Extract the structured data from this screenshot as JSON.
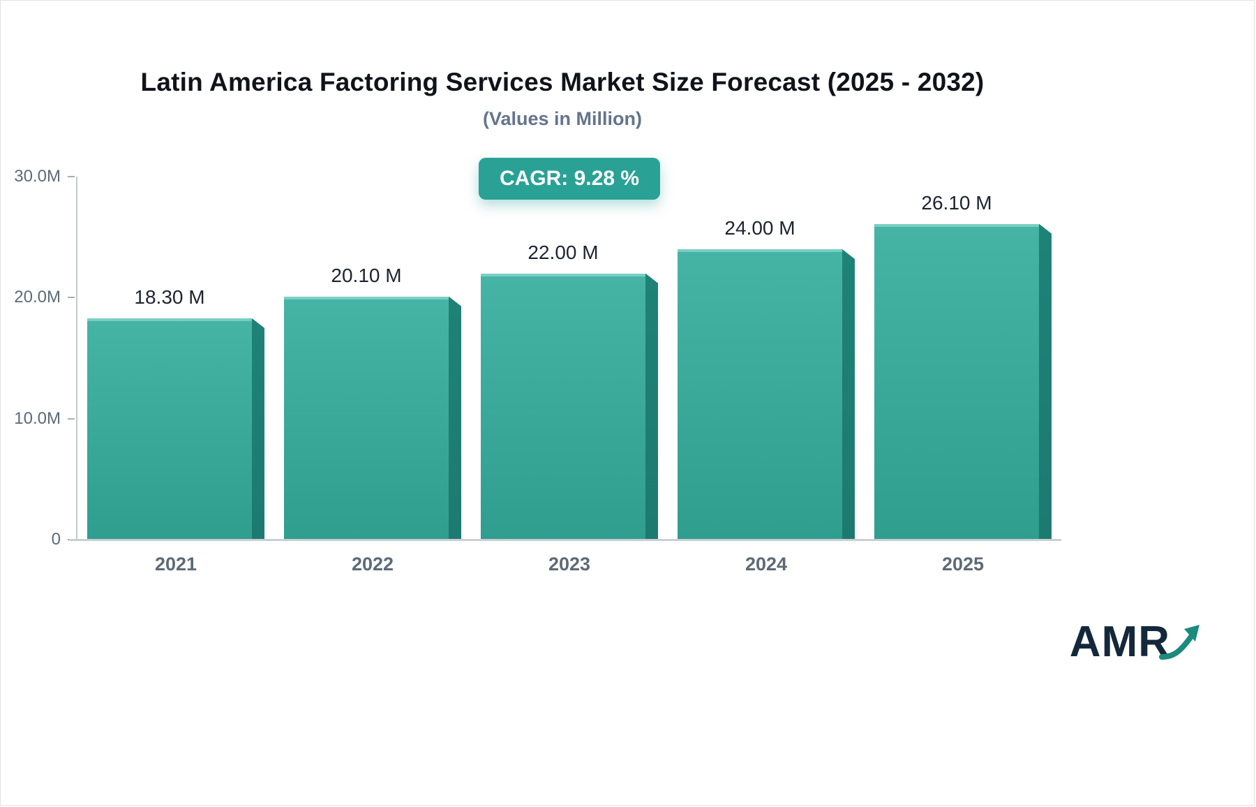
{
  "badge": {
    "label": "CAGR: 9.28 %"
  },
  "chart_data": {
    "type": "bar",
    "title": "Latin America Factoring Services Market Size Forecast (2025 - 2032)",
    "subtitle": "(Values in Million)",
    "categories": [
      "2021",
      "2022",
      "2023",
      "2024",
      "2025"
    ],
    "values": [
      18.3,
      20.1,
      22.0,
      24.0,
      26.1
    ],
    "value_labels": [
      "18.30 M",
      "20.10 M",
      "22.00 M",
      "24.00 M",
      "26.10 M"
    ],
    "xlabel": "",
    "ylabel": "",
    "ylim": [
      0,
      30
    ],
    "ytick_values": [
      30,
      20,
      10,
      0
    ],
    "ytick_labels": [
      "30.0M",
      "20.0M",
      "10.0M",
      "0"
    ],
    "grid": false,
    "legend": "none",
    "bar_color_top": "#46b4a5",
    "bar_color_bottom": "#2f9e8f",
    "bar_side_color": "#1d7a70"
  },
  "branding": {
    "logo_text": "AMR"
  },
  "colors": {
    "accent": "#2aa195",
    "title": "#10131a",
    "subtitle": "#64748b",
    "axis": "#c9cfd4",
    "tick_label": "#5b6b79",
    "value_label": "#1c2430",
    "logo": "#14283c",
    "logo_arrow": "#1d8a7e"
  }
}
